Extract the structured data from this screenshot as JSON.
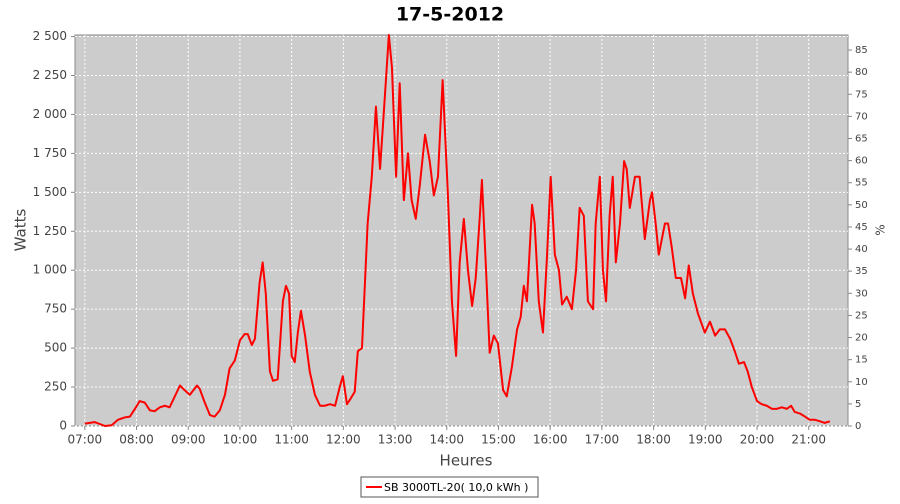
{
  "chart_data": {
    "type": "line",
    "title": "17-5-2012",
    "xlabel": "Heures",
    "ylabel": "Watts",
    "y2label": "%",
    "grid": true,
    "legend": "bottom",
    "x": [
      7.0,
      7.19,
      7.39,
      7.52,
      7.64,
      7.77,
      7.87,
      7.97,
      8.06,
      8.16,
      8.26,
      8.35,
      8.45,
      8.55,
      8.64,
      8.74,
      8.84,
      8.93,
      9.03,
      9.17,
      9.22,
      9.32,
      9.42,
      9.51,
      9.61,
      9.71,
      9.8,
      9.9,
      10.0,
      10.09,
      10.15,
      10.23,
      10.29,
      10.38,
      10.44,
      10.5,
      10.58,
      10.64,
      10.73,
      10.83,
      10.89,
      10.95,
      11.0,
      11.06,
      11.12,
      11.18,
      11.26,
      11.35,
      11.45,
      11.55,
      11.64,
      11.74,
      11.84,
      11.93,
      11.99,
      12.07,
      12.13,
      12.22,
      12.28,
      12.36,
      12.47,
      12.55,
      12.63,
      12.71,
      12.78,
      12.88,
      12.94,
      13.02,
      13.09,
      13.17,
      13.25,
      13.32,
      13.4,
      13.48,
      13.58,
      13.67,
      13.75,
      13.83,
      13.92,
      14.02,
      14.1,
      14.18,
      14.25,
      14.33,
      14.41,
      14.49,
      14.56,
      14.64,
      14.68,
      14.76,
      14.83,
      14.91,
      14.99,
      15.09,
      15.16,
      15.26,
      15.36,
      15.43,
      15.49,
      15.55,
      15.65,
      15.7,
      15.78,
      15.86,
      15.94,
      16.01,
      16.09,
      16.17,
      16.23,
      16.32,
      16.42,
      16.5,
      16.57,
      16.65,
      16.73,
      16.83,
      16.88,
      16.96,
      17.02,
      17.08,
      17.15,
      17.21,
      17.27,
      17.35,
      17.43,
      17.48,
      17.54,
      17.64,
      17.73,
      17.83,
      17.93,
      17.97,
      18.04,
      18.1,
      18.22,
      18.28,
      18.35,
      18.43,
      18.53,
      18.61,
      18.68,
      18.76,
      18.86,
      18.99,
      19.09,
      19.19,
      19.28,
      19.38,
      19.48,
      19.57,
      19.65,
      19.75,
      19.82,
      19.9,
      20.0,
      20.09,
      20.19,
      20.29,
      20.38,
      20.48,
      20.58,
      20.66,
      20.73,
      20.83,
      20.93,
      21.02,
      21.12,
      21.22,
      21.31,
      21.41
    ],
    "series": [
      {
        "name": "SB 3000TL-20( 10,0 kWh )",
        "color": "#ff0000",
        "values": [
          15,
          25,
          0,
          5,
          40,
          55,
          60,
          110,
          160,
          150,
          100,
          95,
          120,
          130,
          120,
          190,
          260,
          230,
          200,
          260,
          240,
          150,
          70,
          60,
          100,
          200,
          370,
          420,
          550,
          590,
          590,
          520,
          560,
          920,
          1050,
          850,
          350,
          290,
          300,
          800,
          900,
          850,
          450,
          410,
          600,
          740,
          580,
          350,
          200,
          130,
          130,
          140,
          130,
          250,
          320,
          140,
          170,
          220,
          480,
          500,
          1300,
          1600,
          2050,
          1650,
          2000,
          2510,
          2300,
          1600,
          2200,
          1450,
          1750,
          1450,
          1330,
          1550,
          1870,
          1700,
          1480,
          1600,
          2220,
          1500,
          800,
          450,
          1050,
          1330,
          1000,
          770,
          950,
          1350,
          1580,
          1000,
          470,
          580,
          530,
          230,
          190,
          380,
          620,
          700,
          900,
          800,
          1420,
          1300,
          800,
          600,
          1100,
          1600,
          1100,
          1000,
          780,
          830,
          750,
          1000,
          1400,
          1350,
          800,
          750,
          1300,
          1600,
          1000,
          800,
          1350,
          1600,
          1050,
          1300,
          1700,
          1650,
          1400,
          1600,
          1600,
          1200,
          1450,
          1500,
          1300,
          1100,
          1300,
          1300,
          1150,
          950,
          950,
          820,
          1030,
          850,
          720,
          600,
          670,
          580,
          620,
          620,
          560,
          480,
          400,
          410,
          350,
          250,
          160,
          140,
          130,
          110,
          110,
          120,
          110,
          130,
          90,
          80,
          60,
          40,
          40,
          30,
          20,
          30
        ]
      }
    ],
    "xlim": [
      6.81,
      21.76
    ],
    "xticks": [
      {
        "value": 7,
        "label": "07:00"
      },
      {
        "value": 8,
        "label": "08:00"
      },
      {
        "value": 9,
        "label": "09:00"
      },
      {
        "value": 10,
        "label": "10:00"
      },
      {
        "value": 11,
        "label": "11:00"
      },
      {
        "value": 12,
        "label": "12:00"
      },
      {
        "value": 13,
        "label": "13:00"
      },
      {
        "value": 14,
        "label": "14:00"
      },
      {
        "value": 15,
        "label": "15:00"
      },
      {
        "value": 16,
        "label": "16:00"
      },
      {
        "value": 17,
        "label": "17:00"
      },
      {
        "value": 18,
        "label": "18:00"
      },
      {
        "value": 19,
        "label": "19:00"
      },
      {
        "value": 20,
        "label": "20:00"
      },
      {
        "value": 21,
        "label": "21:00"
      }
    ],
    "ylim": [
      0,
      2510
    ],
    "yticks": [
      0,
      250,
      500,
      750,
      {
        "value": 1000,
        "label": "1 000"
      },
      {
        "value": 1250,
        "label": "1 250"
      },
      {
        "value": 1500,
        "label": "1 500"
      },
      {
        "value": 1750,
        "label": "1 750"
      },
      {
        "value": 2000,
        "label": "2 000"
      },
      {
        "value": 2250,
        "label": "2 250"
      },
      {
        "value": 2500,
        "label": "2 500"
      }
    ],
    "y2lim": [
      0,
      88.4
    ],
    "y2ticks": [
      0,
      5,
      10,
      15,
      20,
      25,
      30,
      35,
      40,
      45,
      50,
      55,
      60,
      65,
      70,
      75,
      80,
      85
    ]
  }
}
